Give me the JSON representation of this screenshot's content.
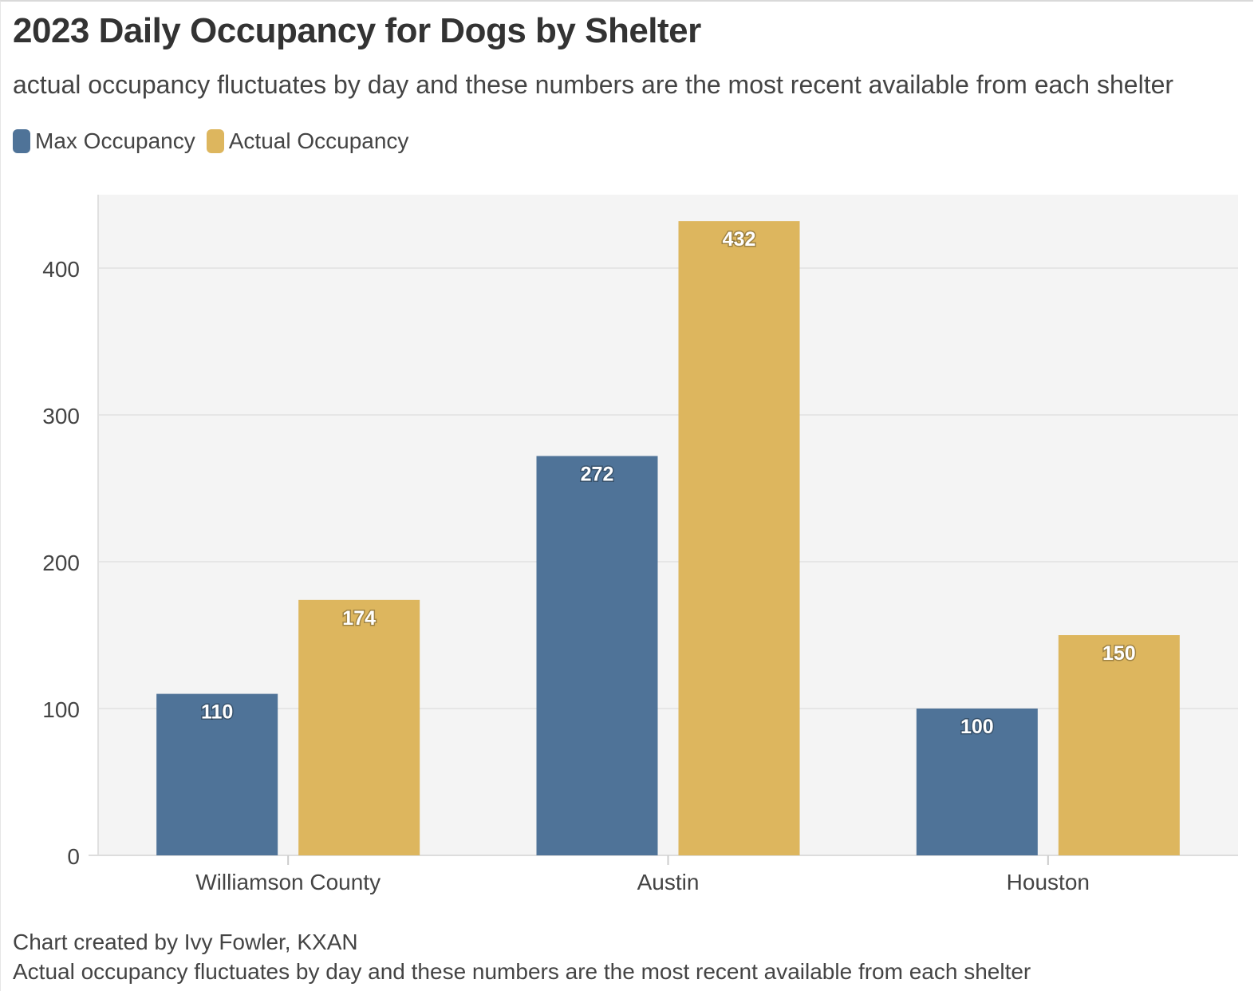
{
  "header": {
    "title": "2023 Daily Occupancy for Dogs by Shelter",
    "subtitle": "actual occupancy fluctuates by day and these numbers are the most recent available from each shelter"
  },
  "legend": {
    "placement": "top-left",
    "items": [
      {
        "label": "Max Occupancy",
        "color": "#4f7398"
      },
      {
        "label": "Actual Occupancy",
        "color": "#ddb65e"
      }
    ]
  },
  "footer": {
    "credit": "Chart created by Ivy Fowler, KXAN",
    "note": "Actual occupancy fluctuates by day and these numbers are the most recent available from each shelter"
  },
  "colors": {
    "plot_background": "#f4f4f4",
    "gridline": "#e6e6e6",
    "axis_text": "#444444"
  },
  "chart_data": {
    "type": "bar",
    "title": "2023 Daily Occupancy for Dogs by Shelter",
    "subtitle": "actual occupancy fluctuates by day and these numbers are the most recent available from each shelter",
    "categories": [
      "Williamson County",
      "Austin",
      "Houston"
    ],
    "series": [
      {
        "name": "Max Occupancy",
        "values": [
          110,
          272,
          100
        ],
        "color": "#4f7398"
      },
      {
        "name": "Actual Occupancy",
        "values": [
          174,
          432,
          150
        ],
        "color": "#ddb65e"
      }
    ],
    "xlabel": "",
    "ylabel": "",
    "ylim": [
      0,
      450
    ],
    "yticks": [
      0,
      100,
      200,
      300,
      400
    ],
    "grid": true,
    "data_labels": true
  }
}
